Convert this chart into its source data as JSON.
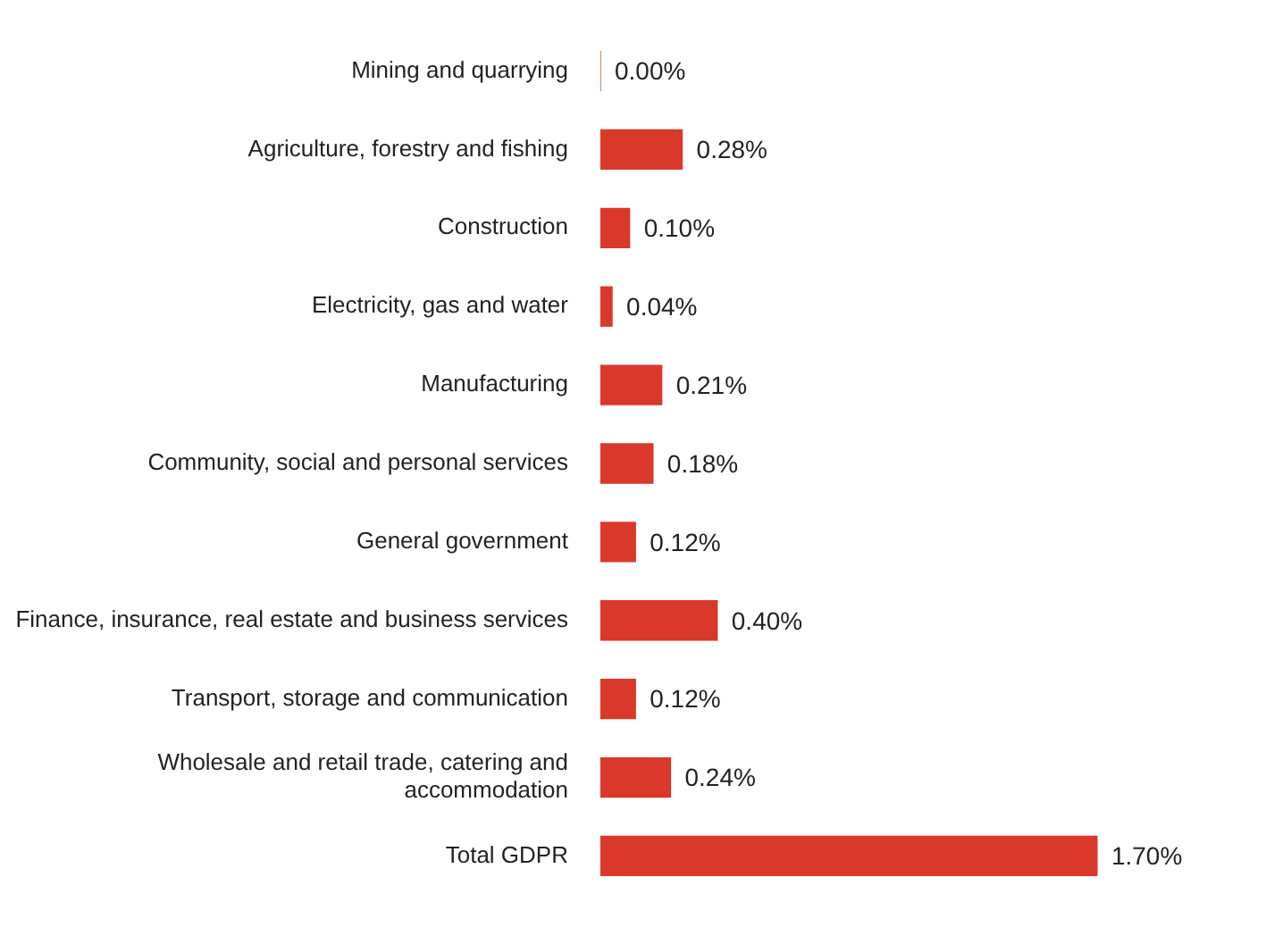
{
  "chart_data": {
    "type": "bar",
    "orientation": "horizontal",
    "categories": [
      "Mining and quarrying",
      "Agriculture, forestry and fishing",
      "Construction",
      "Electricity, gas and water",
      "Manufacturing",
      "Community, social and personal services",
      "General government",
      "Finance, insurance, real estate and business services",
      "Transport, storage and communication",
      "Wholesale and retail trade, catering and\naccommodation",
      "Total GDPR"
    ],
    "values": [
      0.0,
      0.28,
      0.1,
      0.04,
      0.21,
      0.18,
      0.12,
      0.4,
      0.12,
      0.24,
      1.7
    ],
    "value_labels": [
      "0.00%",
      "0.28%",
      "0.10%",
      "0.04%",
      "0.21%",
      "0.18%",
      "0.12%",
      "0.40%",
      "0.12%",
      "0.24%",
      "1.70%"
    ],
    "color": "#d9382b",
    "legend": false,
    "tick_labels": "y"
  }
}
